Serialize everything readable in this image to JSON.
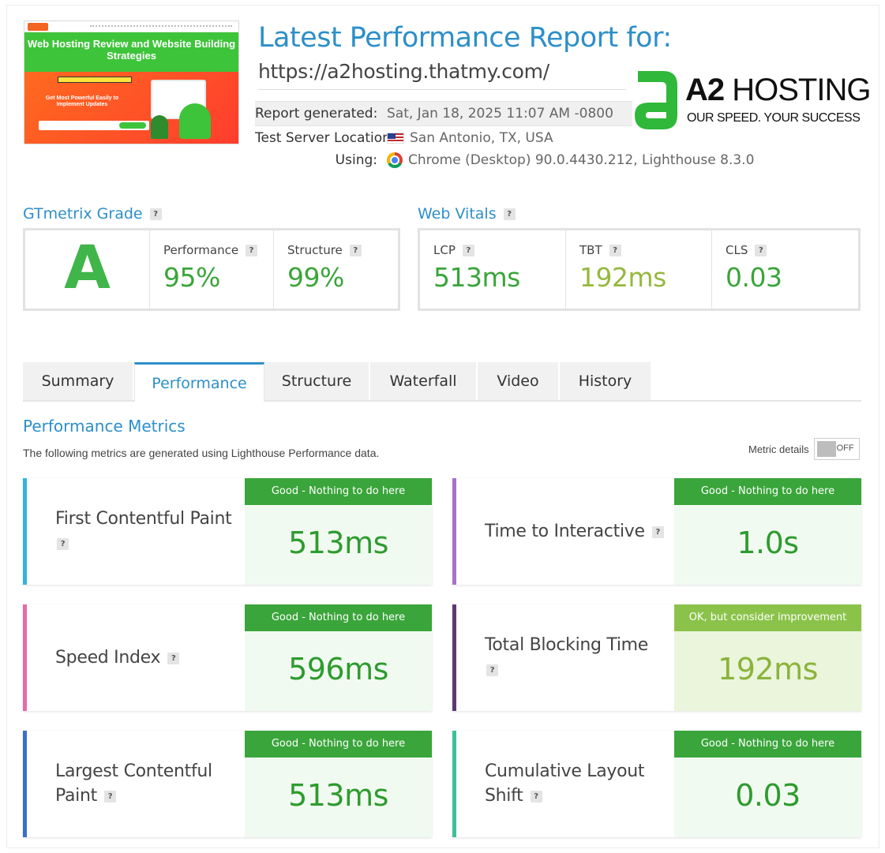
{
  "thumbnail": {
    "headline": "Web Hosting Review and Website Building Strategies",
    "sub": "Get Most Powerful Easily to Implement Updates"
  },
  "report": {
    "title": "Latest Performance Report for:",
    "url": "https://a2hosting.thatmy.com/",
    "generated_label": "Report generated:",
    "generated_value": "Sat, Jan 18, 2025 11:07 AM -0800",
    "location_label": "Test Server Location:",
    "location_value": "San Antonio, TX, USA",
    "using_label": "Using:",
    "using_value": "Chrome (Desktop) 90.0.4430.212, Lighthouse 8.3.0"
  },
  "brand": {
    "name_bold": "A2",
    "name_rest": " HOSTING",
    "tagline": "OUR SPEED. YOUR SUCCESS"
  },
  "grade": {
    "title": "GTmetrix Grade",
    "letter": "A",
    "performance_label": "Performance",
    "performance_value": "95%",
    "structure_label": "Structure",
    "structure_value": "99%"
  },
  "vitals": {
    "title": "Web Vitals",
    "lcp_label": "LCP",
    "lcp_value": "513ms",
    "tbt_label": "TBT",
    "tbt_value": "192ms",
    "cls_label": "CLS",
    "cls_value": "0.03"
  },
  "tabs": [
    "Summary",
    "Performance",
    "Structure",
    "Waterfall",
    "Video",
    "History"
  ],
  "metrics_section": {
    "title": "Performance Metrics",
    "description": "The following metrics are generated using Lighthouse Performance data.",
    "details_label": "Metric details",
    "toggle_state": "OFF"
  },
  "metrics": [
    {
      "name": "First Contentful Paint",
      "badge": "Good - Nothing to do here",
      "value": "513ms"
    },
    {
      "name": "Time to Interactive",
      "badge": "Good - Nothing to do here",
      "value": "1.0s"
    },
    {
      "name": "Speed Index",
      "badge": "Good - Nothing to do here",
      "value": "596ms"
    },
    {
      "name": "Total Blocking Time",
      "badge": "OK, but consider improvement",
      "value": "192ms"
    },
    {
      "name": "Largest Contentful Paint",
      "badge": "Good - Nothing to do here",
      "value": "513ms"
    },
    {
      "name": "Cumulative Layout Shift",
      "badge": "Good - Nothing to do here",
      "value": "0.03"
    }
  ],
  "colors": {
    "accent": "#2d8fc9",
    "good": "#3aa53a",
    "ok": "#8bc34a"
  }
}
